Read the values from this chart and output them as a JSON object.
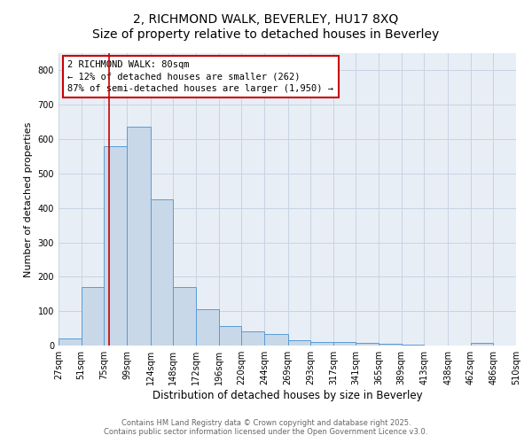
{
  "title_line1": "2, RICHMOND WALK, BEVERLEY, HU17 8XQ",
  "title_line2": "Size of property relative to detached houses in Beverley",
  "xlabel": "Distribution of detached houses by size in Beverley",
  "ylabel": "Number of detached properties",
  "bin_labels": [
    "27sqm",
    "51sqm",
    "75sqm",
    "99sqm",
    "124sqm",
    "148sqm",
    "172sqm",
    "196sqm",
    "220sqm",
    "244sqm",
    "269sqm",
    "293sqm",
    "317sqm",
    "341sqm",
    "365sqm",
    "389sqm",
    "413sqm",
    "438sqm",
    "462sqm",
    "486sqm",
    "510sqm"
  ],
  "bin_edges": [
    27,
    51,
    75,
    99,
    124,
    148,
    172,
    196,
    220,
    244,
    269,
    293,
    317,
    341,
    365,
    389,
    413,
    438,
    462,
    486,
    510
  ],
  "bar_heights": [
    20,
    170,
    580,
    635,
    425,
    170,
    105,
    57,
    42,
    33,
    16,
    10,
    10,
    7,
    5,
    3,
    0,
    0,
    7,
    0
  ],
  "bar_color": "#c8d8e8",
  "bar_edge_color": "#5b9bd5",
  "property_size": 80,
  "annotation_line1": "2 RICHMOND WALK: 80sqm",
  "annotation_line2": "← 12% of detached houses are smaller (262)",
  "annotation_line3": "87% of semi-detached houses are larger (1,950) →",
  "vline_color": "#cc0000",
  "annotation_box_color": "#cc0000",
  "ylim": [
    0,
    850
  ],
  "yticks": [
    0,
    100,
    200,
    300,
    400,
    500,
    600,
    700,
    800
  ],
  "grid_color": "#c8d4e4",
  "background_color": "#e8eef5",
  "footer_line1": "Contains HM Land Registry data © Crown copyright and database right 2025.",
  "footer_line2": "Contains public sector information licensed under the Open Government Licence v3.0.",
  "title_fontsize": 10,
  "axis_label_fontsize": 8.5,
  "tick_fontsize": 7,
  "annotation_fontsize": 7.5,
  "ylabel_fontsize": 8
}
